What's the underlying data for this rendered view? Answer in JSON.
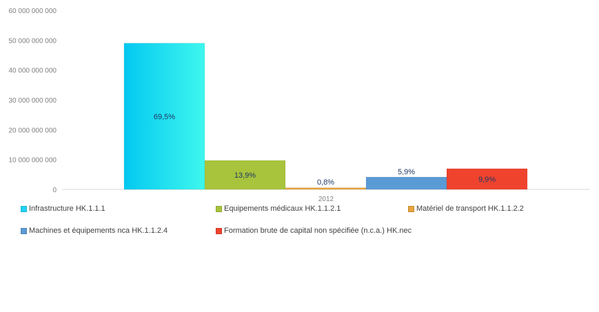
{
  "chart_data": {
    "type": "bar",
    "categories": [
      "2012"
    ],
    "series": [
      {
        "name": "Infrastructure HK.1.1.1",
        "values": [
          49000000000
        ],
        "label": "69,5%",
        "color": "#22d3f5"
      },
      {
        "name": "Equipements médicaux HK.1.1.2.1",
        "values": [
          9700000000
        ],
        "label": "13,9%",
        "color": "#a8c43c"
      },
      {
        "name": "Matériel de transport HK.1.1.2.2",
        "values": [
          560000000
        ],
        "label": "0,8%",
        "color": "#e8a43c"
      },
      {
        "name": "Machines et équipements nca HK.1.1.2.4",
        "values": [
          4150000000
        ],
        "label": "5,9%",
        "color": "#5b9bd5"
      },
      {
        "name": "Formation brute de capital non spécifiée (n.c.a.) HK.nec",
        "values": [
          6950000000
        ],
        "label": "9,9%",
        "color": "#f0432e"
      }
    ],
    "yticks": [
      "0",
      "10 000 000 000",
      "20 000 000 000",
      "30 000 000 000",
      "40 000 000 000",
      "50 000 000 000",
      "60 000 000 000"
    ],
    "ylim": [
      0,
      60000000000
    ],
    "legend_position": "bottom",
    "grid": false
  }
}
